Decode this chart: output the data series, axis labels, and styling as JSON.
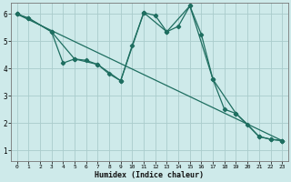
{
  "xlabel": "Humidex (Indice chaleur)",
  "background_color": "#ceeaea",
  "grid_color": "#aacccc",
  "line_color": "#1e6e60",
  "xlim": [
    -0.5,
    23.5
  ],
  "ylim": [
    0.6,
    6.4
  ],
  "yticks": [
    1,
    2,
    3,
    4,
    5,
    6
  ],
  "xticks": [
    0,
    1,
    2,
    3,
    4,
    5,
    6,
    7,
    8,
    9,
    10,
    11,
    12,
    13,
    14,
    15,
    16,
    17,
    18,
    19,
    20,
    21,
    22,
    23
  ],
  "series1_x": [
    0,
    1,
    3,
    4,
    5,
    6,
    7,
    8,
    9,
    10,
    11,
    12,
    13,
    14,
    15,
    16,
    17,
    18,
    19,
    20,
    21,
    22,
    23
  ],
  "series1_y": [
    6.0,
    5.85,
    5.35,
    4.2,
    4.35,
    4.3,
    4.15,
    3.8,
    3.55,
    4.85,
    6.05,
    5.95,
    5.35,
    5.55,
    6.3,
    5.25,
    3.6,
    2.5,
    2.35,
    1.95,
    1.5,
    1.4,
    1.35
  ],
  "series2_x": [
    0,
    1,
    3,
    5,
    7,
    9,
    11,
    13,
    15,
    17,
    19,
    21,
    22,
    23
  ],
  "series2_y": [
    6.0,
    5.85,
    5.35,
    4.35,
    4.15,
    3.55,
    6.05,
    5.35,
    6.3,
    3.6,
    2.35,
    1.5,
    1.4,
    1.35
  ],
  "series3_x": [
    0,
    23
  ],
  "series3_y": [
    6.0,
    1.35
  ],
  "marker": "D",
  "markersize": 2.2,
  "linewidth": 0.9
}
